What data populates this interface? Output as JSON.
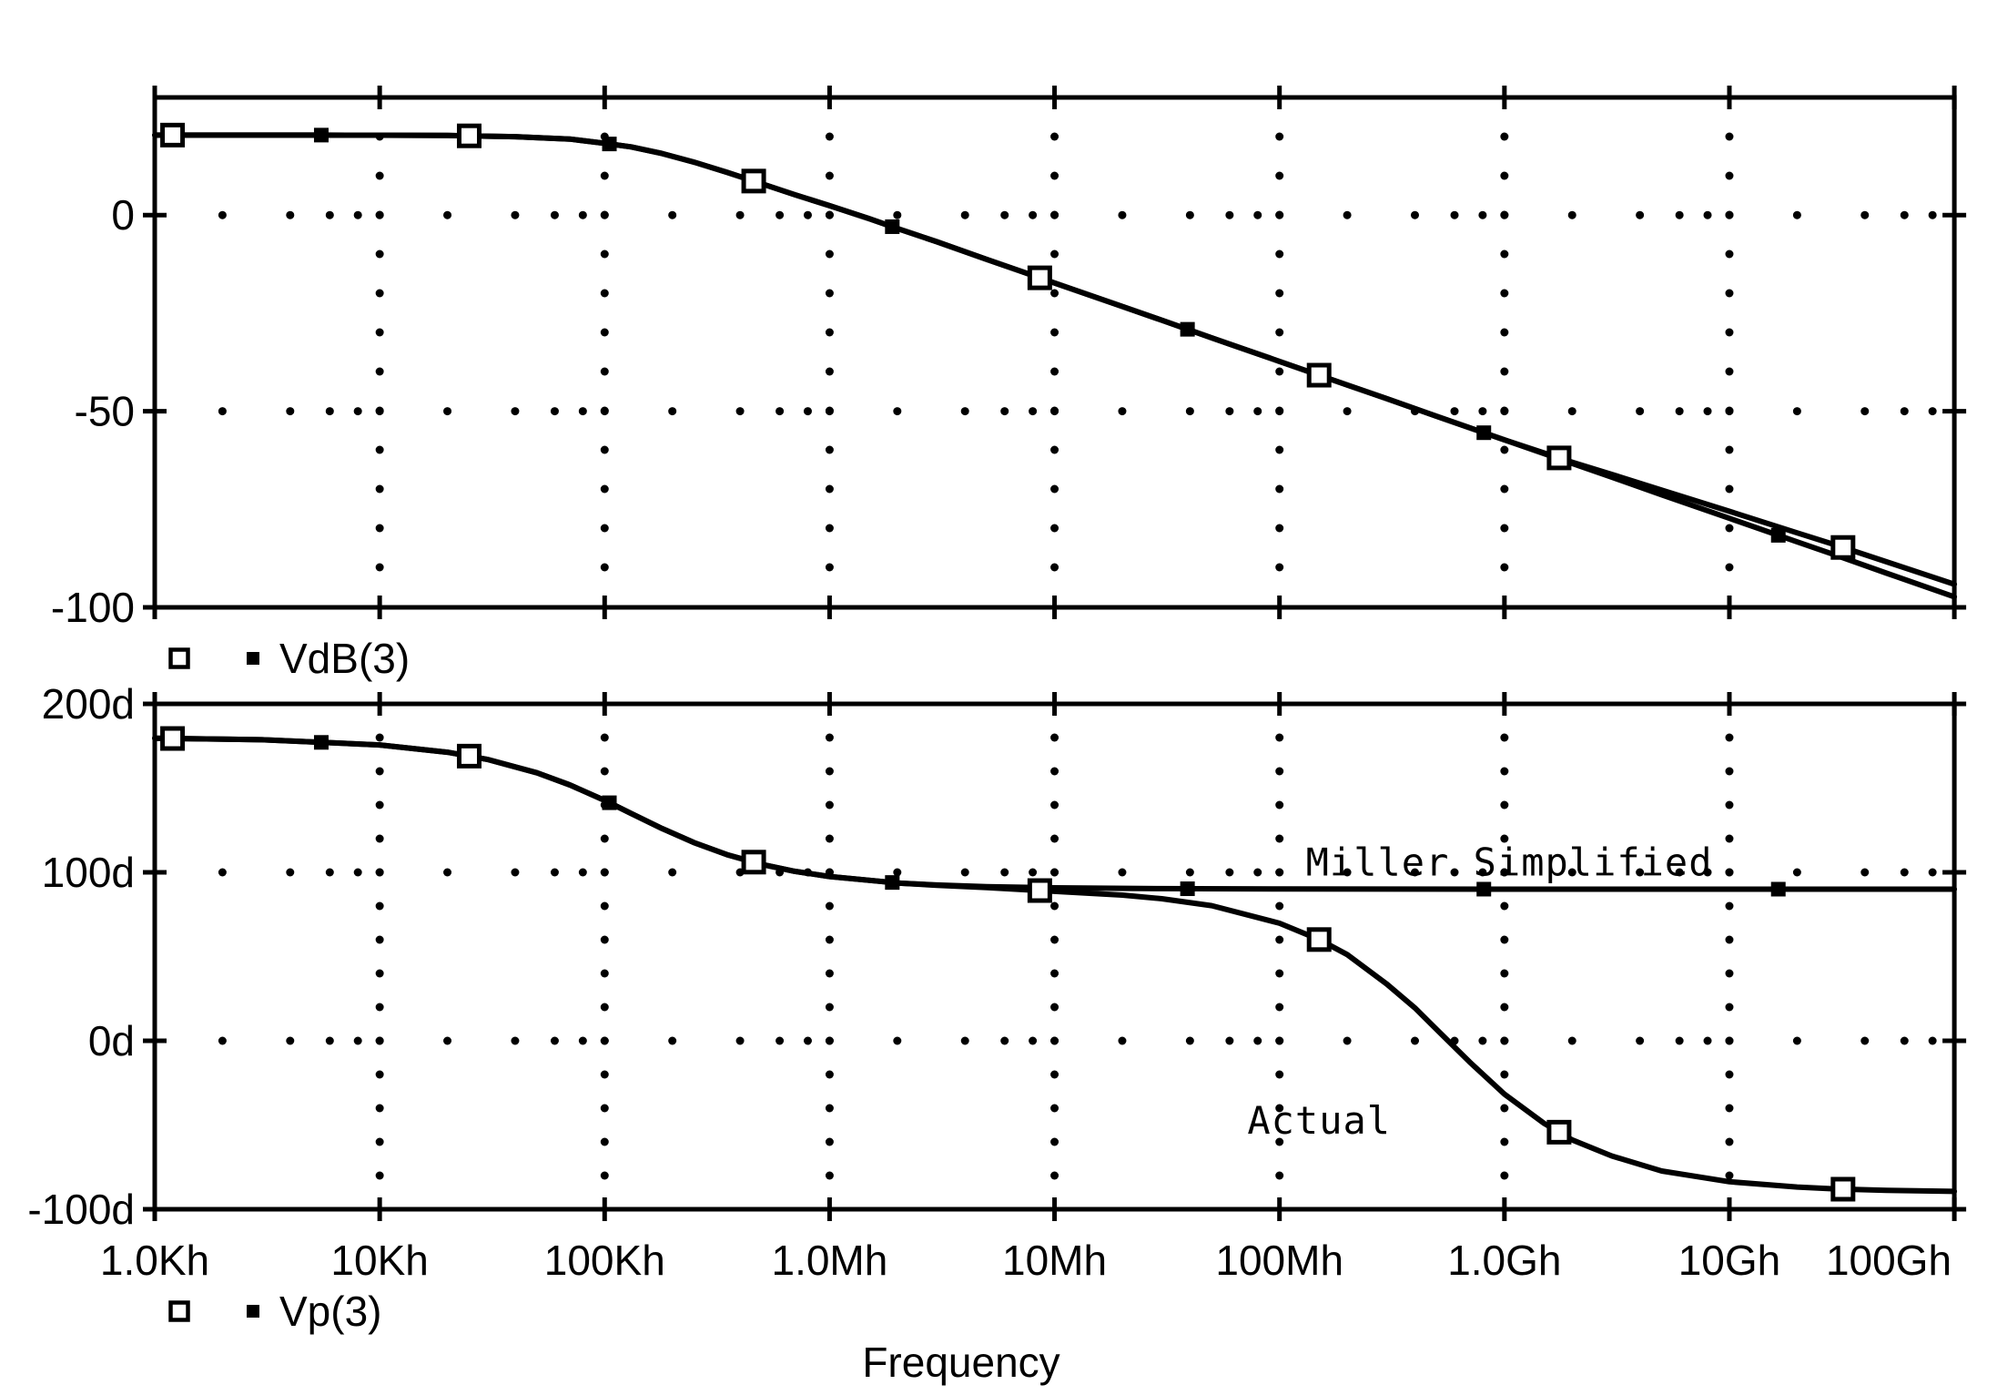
{
  "page": {
    "background": "#ffffff",
    "foreground": "#000000"
  },
  "x_axis": {
    "label": "Frequency",
    "scale": "log",
    "unit": "Hz",
    "min": 1000,
    "max": 100000000000,
    "ticks": [
      {
        "label": "1.0Kh",
        "f": 1000
      },
      {
        "label": "10Kh",
        "f": 10000
      },
      {
        "label": "100Kh",
        "f": 100000
      },
      {
        "label": "1.0Mh",
        "f": 1000000
      },
      {
        "label": "10Mh",
        "f": 10000000
      },
      {
        "label": "100Mh",
        "f": 100000000
      },
      {
        "label": "1.0Gh",
        "f": 1000000000
      },
      {
        "label": "10Gh",
        "f": 10000000000
      },
      {
        "label": "100Gh",
        "f": 100000000000
      }
    ]
  },
  "legend_mag": {
    "label": "VdB(3)",
    "open_marker": "open-square",
    "filled_marker": "filled-square"
  },
  "legend_phase": {
    "label": "Vp(3)",
    "open_marker": "open-square",
    "filled_marker": "filled-square"
  },
  "chart_data": [
    {
      "type": "line",
      "panel": "magnitude",
      "legend": "VdB(3)",
      "y_unit": "dB",
      "ylim": [
        -100,
        30
      ],
      "xlim_hz": [
        1000,
        100000000000
      ],
      "grid": "dotted",
      "y_ticks": [
        {
          "label": "0",
          "value": 0
        },
        {
          "label": "-50",
          "value": -50
        },
        {
          "label": "-100",
          "value": -100
        }
      ],
      "series": [
        {
          "name": "Actual",
          "marker": "open-square",
          "x": [
            1000,
            5000,
            10000,
            20000,
            40000,
            70000,
            100000,
            131000,
            180000,
            250000,
            350000,
            500000,
            700000,
            1000000,
            1500000,
            2000000,
            3000000,
            5000000,
            7000000,
            10000000,
            20000000,
            30000000,
            50000000,
            100000000,
            200000000,
            300000000,
            500000000,
            1000000000,
            2000000000,
            3000000000,
            5000000000,
            10000000000,
            20000000000,
            30000000000,
            50000000000,
            100000000000
          ],
          "y": [
            20.4,
            20.4,
            20.37,
            20.3,
            20.0,
            19.4,
            18.3,
            17.4,
            15.7,
            13.5,
            10.9,
            8.0,
            5.2,
            2.4,
            -0.9,
            -3.4,
            -6.8,
            -11.3,
            -14.2,
            -17.3,
            -23.3,
            -26.8,
            -31.3,
            -37.3,
            -43.3,
            -46.8,
            -51.3,
            -57.3,
            -63.0,
            -66.1,
            -70.1,
            -75.5,
            -81.0,
            -84.2,
            -88.4,
            -94.1
          ],
          "marker_x": [
            1200,
            25000,
            460000,
            8600000,
            150000000,
            1750000000,
            32000000000
          ]
        },
        {
          "name": "Miller Simplified",
          "marker": "filled-square",
          "x": [
            1000,
            5000,
            10000,
            20000,
            40000,
            70000,
            100000,
            131000,
            180000,
            250000,
            350000,
            500000,
            700000,
            1000000,
            1500000,
            2000000,
            3000000,
            5000000,
            7000000,
            10000000,
            20000000,
            30000000,
            50000000,
            100000000,
            200000000,
            300000000,
            500000000,
            1000000000,
            2000000000,
            3000000000,
            5000000000,
            10000000000,
            20000000000,
            30000000000,
            50000000000,
            100000000000
          ],
          "y": [
            20.4,
            20.4,
            20.37,
            20.3,
            20.0,
            19.4,
            18.3,
            17.4,
            15.7,
            13.5,
            10.9,
            8.0,
            5.2,
            2.4,
            -0.9,
            -3.4,
            -6.8,
            -11.3,
            -14.2,
            -17.3,
            -23.3,
            -26.8,
            -31.3,
            -37.3,
            -43.3,
            -46.8,
            -51.3,
            -57.3,
            -63.3,
            -66.8,
            -71.3,
            -77.3,
            -83.3,
            -86.8,
            -91.3,
            -97.3
          ],
          "marker_x": [
            5500,
            105000,
            1900000,
            39000000,
            810000000,
            16500000000
          ]
        }
      ]
    },
    {
      "type": "line",
      "panel": "phase",
      "legend": "Vp(3)",
      "y_unit": "degrees",
      "ylim": [
        -100,
        200
      ],
      "xlim_hz": [
        1000,
        100000000000
      ],
      "grid": "dotted",
      "y_ticks": [
        {
          "label": "200d",
          "value": 200
        },
        {
          "label": "100d",
          "value": 100
        },
        {
          "label": "0d",
          "value": 0
        },
        {
          "label": "-100d",
          "value": -100
        }
      ],
      "series": [
        {
          "name": "Actual",
          "marker": "open-square",
          "x": [
            1000,
            3000,
            10000,
            20000,
            30000,
            50000,
            70000,
            100000,
            131000,
            180000,
            250000,
            350000,
            500000,
            700000,
            1000000,
            2000000,
            3000000,
            5000000,
            10000000,
            20000000,
            30000000,
            50000000,
            100000000,
            150000000,
            200000000,
            300000000,
            400000000,
            500000000,
            700000000,
            1000000000,
            1500000000,
            2000000000,
            3000000000,
            5000000000,
            10000000000,
            20000000000,
            30000000000,
            50000000000,
            100000000000
          ],
          "y": [
            179.6,
            178.7,
            175.6,
            171.3,
            167.1,
            159.1,
            151.9,
            142.7,
            135,
            126,
            117.6,
            110.5,
            104.7,
            100.6,
            97.5,
            93.7,
            92.3,
            90.9,
            88.7,
            86.5,
            84.3,
            80.2,
            69.8,
            60.1,
            51.2,
            33.7,
            19.5,
            6.7,
            -12.6,
            -31.7,
            -49.0,
            -58.8,
            -68.4,
            -77.3,
            -83.7,
            -86.8,
            -88.0,
            -88.8,
            -89.4
          ],
          "marker_x": [
            1200,
            25000,
            460000,
            8600000,
            150000000,
            1750000000,
            32000000000
          ]
        },
        {
          "name": "Miller Simplified",
          "marker": "filled-square",
          "x": [
            1000,
            3000,
            10000,
            20000,
            30000,
            50000,
            70000,
            100000,
            131000,
            180000,
            250000,
            350000,
            500000,
            700000,
            1000000,
            2000000,
            3000000,
            5000000,
            10000000,
            30000000,
            100000000,
            1000000000,
            10000000000,
            100000000000
          ],
          "y": [
            179.6,
            178.7,
            175.6,
            171.3,
            167.1,
            159.1,
            151.9,
            142.7,
            135,
            126,
            117.6,
            110.5,
            104.7,
            100.6,
            97.5,
            93.7,
            92.5,
            91.5,
            90.8,
            90.3,
            90.1,
            90,
            90,
            90
          ],
          "marker_x": [
            5500,
            105000,
            1900000,
            39000000,
            810000000,
            16500000000
          ]
        }
      ],
      "annotations": [
        {
          "text": "Miller Simplified",
          "x": 1050000000,
          "y": 98
        },
        {
          "text": "Actual",
          "x": 150000000,
          "y": -55
        }
      ]
    }
  ]
}
